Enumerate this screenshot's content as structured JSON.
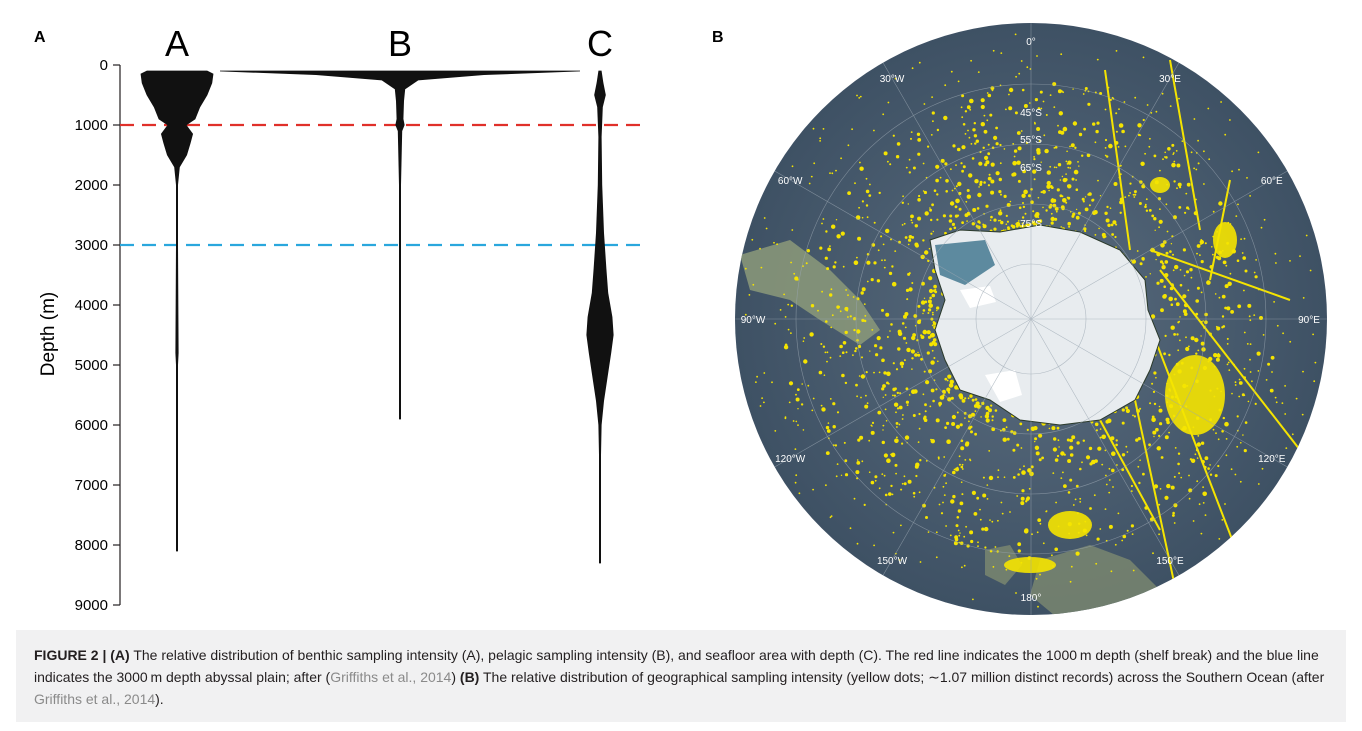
{
  "panel_a": {
    "letter": "A",
    "columns": [
      "A",
      "B",
      "C"
    ],
    "ylabel": "Depth (m)",
    "yticks": [
      "0",
      "1000",
      "2000",
      "3000",
      "4000",
      "5000",
      "6000",
      "7000",
      "8000",
      "9000"
    ],
    "line_colors": {
      "shelf_break": "#e0302a",
      "abyssal": "#2aa7dd"
    }
  },
  "chart_data": {
    "type": "area",
    "ylabel": "Depth (m)",
    "ylim": [
      0,
      9000
    ],
    "categories": [
      "A",
      "B",
      "C"
    ],
    "reference_lines": [
      1000,
      3000
    ],
    "series": [
      {
        "name": "A",
        "max_depth": 8100,
        "profile": [
          [
            100,
            0.5
          ],
          [
            150,
            0.6
          ],
          [
            300,
            0.58
          ],
          [
            500,
            0.5
          ],
          [
            700,
            0.38
          ],
          [
            900,
            0.3
          ],
          [
            1000,
            0.15
          ],
          [
            1150,
            0.26
          ],
          [
            1300,
            0.22
          ],
          [
            1500,
            0.16
          ],
          [
            1700,
            0.04
          ],
          [
            2000,
            0.01
          ],
          [
            3000,
            0.01
          ],
          [
            4800,
            0.02
          ],
          [
            5000,
            0.01
          ],
          [
            8100,
            0.005
          ]
        ]
      },
      {
        "name": "B",
        "max_depth": 5900,
        "profile": [
          [
            100,
            3.0
          ],
          [
            160,
            1.4
          ],
          [
            250,
            0.3
          ],
          [
            400,
            0.08
          ],
          [
            600,
            0.06
          ],
          [
            900,
            0.05
          ],
          [
            1000,
            0.07
          ],
          [
            1100,
            0.03
          ],
          [
            2000,
            0.01
          ],
          [
            5900,
            0.005
          ]
        ]
      },
      {
        "name": "C",
        "max_depth": 8300,
        "profile": [
          [
            100,
            0.02
          ],
          [
            300,
            0.05
          ],
          [
            500,
            0.09
          ],
          [
            700,
            0.04
          ],
          [
            1200,
            0.02
          ],
          [
            2000,
            0.03
          ],
          [
            2800,
            0.06
          ],
          [
            3400,
            0.1
          ],
          [
            3800,
            0.13
          ],
          [
            4200,
            0.2
          ],
          [
            4500,
            0.22
          ],
          [
            4800,
            0.18
          ],
          [
            5200,
            0.12
          ],
          [
            5600,
            0.06
          ],
          [
            6000,
            0.02
          ],
          [
            6500,
            0.01
          ],
          [
            8300,
            0.005
          ]
        ]
      }
    ]
  },
  "panel_b": {
    "letter": "B",
    "lon_labels": [
      "0°",
      "30°E",
      "60°E",
      "90°E",
      "120°E",
      "150°E",
      "180°",
      "150°W",
      "120°W",
      "90°W",
      "60°W",
      "30°W"
    ],
    "lat_labels": [
      "45°S",
      "55°S",
      "65°S",
      "75°S"
    ],
    "colors": {
      "ocean": "#4c5f72",
      "records": "#f5e400",
      "ice": "#e8ecef"
    }
  },
  "caption": {
    "label": "FIGURE 2 | (A)",
    "text_1": " The relative distribution of benthic sampling intensity (A), pelagic sampling intensity (B), and seafloor area with depth (C). The red line indicates the 1000 m depth (shelf break) and the blue line indicates the 3000 m depth abyssal plain; after (",
    "ref_1": "Griffiths et al., 2014",
    "text_2": ") ",
    "label_b": "(B)",
    "text_3": " The relative distribution of geographical sampling intensity (yellow dots; ∼1.07 million distinct records) across the Southern Ocean (after ",
    "ref_2": "Griffiths et al., 2014",
    "text_4": ")."
  }
}
